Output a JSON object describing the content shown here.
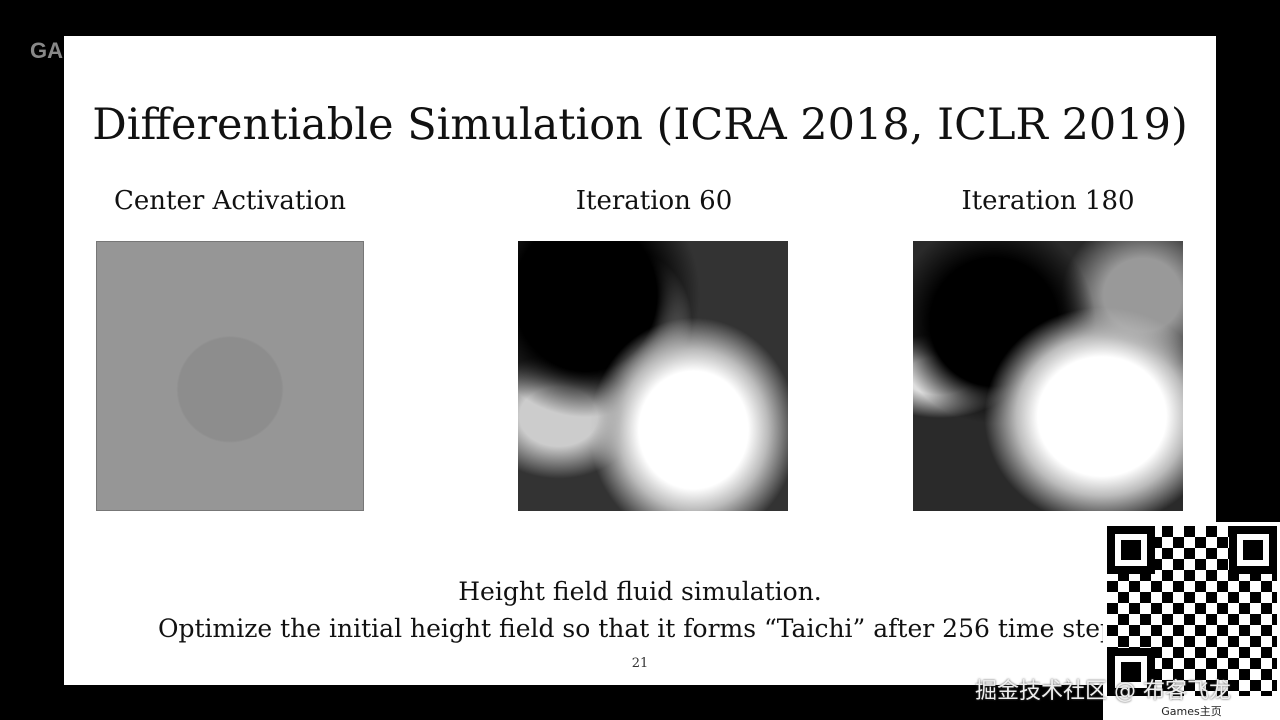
{
  "watermark": "GA",
  "slide": {
    "title": "Differentiable Simulation (ICRA 2018, ICLR 2019)",
    "panels": [
      {
        "caption": "Center Activation"
      },
      {
        "caption": "Iteration 60"
      },
      {
        "caption": "Iteration 180"
      }
    ],
    "line1": "Height field fluid simulation.",
    "line2": "Optimize the initial height field so that it forms “Taichi” after 256 time step",
    "page_number": "21"
  },
  "qr": {
    "label": "Games主页"
  },
  "credit": "掘金技术社区 @ 布客飞龙"
}
